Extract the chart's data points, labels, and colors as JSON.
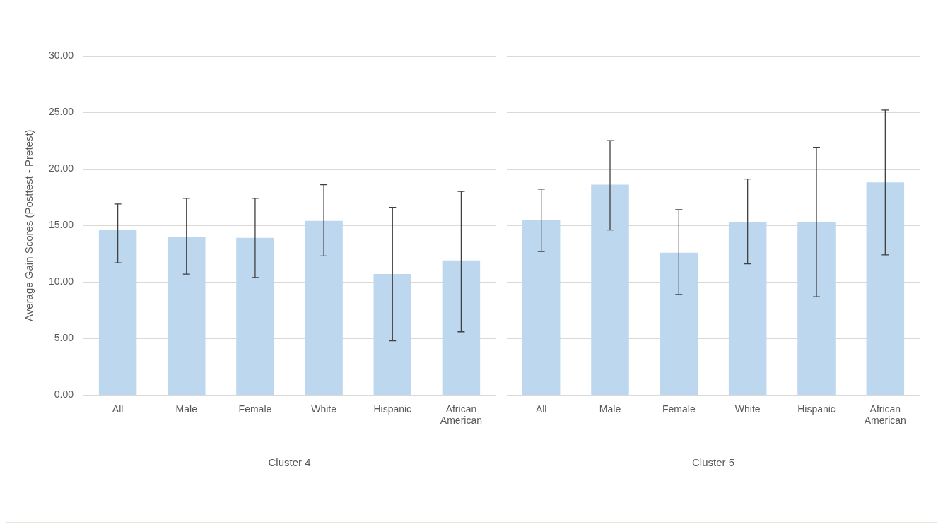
{
  "chart_data": [
    {
      "type": "bar",
      "xlabel": "Cluster 4",
      "ylabel": "Average Gain Scores (Posttest - Pretest)",
      "categories": [
        "All",
        "Male",
        "Female",
        "White",
        "Hispanic",
        "African American"
      ],
      "values": [
        14.6,
        14.0,
        13.9,
        15.4,
        10.7,
        11.9
      ],
      "errors": [
        [
          11.7,
          16.9
        ],
        [
          10.7,
          17.4
        ],
        [
          10.4,
          17.4
        ],
        [
          12.3,
          18.6
        ],
        [
          4.8,
          16.6
        ],
        [
          5.6,
          18.0
        ]
      ],
      "color": "#bdd7ee",
      "ylim": [
        0,
        30
      ],
      "yticks": [
        {
          "value": 0,
          "label": "0.00"
        },
        {
          "value": 5,
          "label": "5.00"
        },
        {
          "value": 10,
          "label": "10.00"
        },
        {
          "value": 15,
          "label": "15.00"
        },
        {
          "value": 20,
          "label": "20.00"
        },
        {
          "value": 25,
          "label": "25.00"
        },
        {
          "value": 30,
          "label": "30.00"
        }
      ],
      "grid": "y"
    },
    {
      "type": "bar",
      "xlabel": "Cluster 5",
      "categories": [
        "All",
        "Male",
        "Female",
        "White",
        "Hispanic",
        "African American"
      ],
      "values": [
        15.5,
        18.6,
        12.6,
        15.3,
        15.3,
        18.8
      ],
      "errors": [
        [
          12.7,
          18.2
        ],
        [
          14.6,
          22.5
        ],
        [
          8.9,
          16.4
        ],
        [
          11.6,
          19.1
        ],
        [
          8.7,
          21.9
        ],
        [
          12.4,
          25.2
        ]
      ],
      "color": "#bdd7ee",
      "ylim": [
        0,
        30
      ],
      "yticks": [
        0,
        5,
        10,
        15,
        20,
        25,
        30
      ],
      "grid": "y",
      "tick_labels": "x"
    }
  ]
}
